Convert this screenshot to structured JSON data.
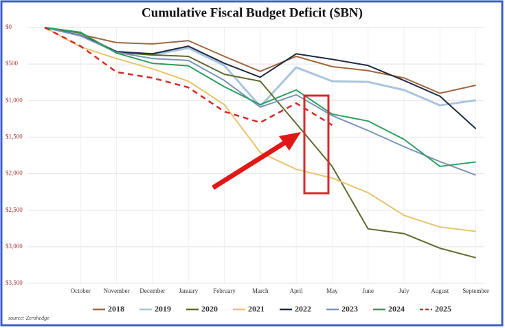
{
  "chart_data": {
    "type": "line",
    "title": "Cumulative Fiscal Budget Deficit ($BN)",
    "source": "source: Zerohedge",
    "categories": [
      null,
      "October",
      "November",
      "December",
      "January",
      "February",
      "March",
      "April",
      "May",
      "June",
      "July",
      "August",
      "September"
    ],
    "ylim": [
      3500,
      0
    ],
    "yticks": [
      {
        "value": 0,
        "label": "$0"
      },
      {
        "value": 500,
        "label": "$500"
      },
      {
        "value": 1000,
        "label": "$1,000"
      },
      {
        "value": 1500,
        "label": "$1,500"
      },
      {
        "value": 2000,
        "label": "$2,000"
      },
      {
        "value": 2500,
        "label": "$2,500"
      },
      {
        "value": 3000,
        "label": "$3,000"
      },
      {
        "value": 3500,
        "label": "$3,500"
      }
    ],
    "grid": true,
    "series": [
      {
        "name": "2018",
        "color": "#a0663c",
        "values": [
          0,
          95,
          207,
          225,
          180,
          395,
          600,
          395,
          535,
          590,
          690,
          900,
          790
        ]
      },
      {
        "name": "2019",
        "color": "#a9c4de",
        "values": [
          0,
          95,
          330,
          375,
          280,
          520,
          1080,
          545,
          735,
          745,
          855,
          1065,
          995
        ]
      },
      {
        "name": "2020",
        "color": "#5f6b2e",
        "values": [
          0,
          75,
          340,
          375,
          395,
          640,
          735,
          1315,
          1900,
          2755,
          2820,
          3020,
          3150
        ]
      },
      {
        "name": "2021",
        "color": "#e8c46a",
        "values": [
          0,
          265,
          425,
          565,
          735,
          1055,
          1710,
          1940,
          2060,
          2260,
          2570,
          2730,
          2790
        ]
      },
      {
        "name": "2022",
        "color": "#1f2a44",
        "values": [
          0,
          110,
          330,
          360,
          255,
          490,
          680,
          360,
          435,
          520,
          725,
          940,
          1385
        ]
      },
      {
        "name": "2023",
        "color": "#7b93b8",
        "values": [
          0,
          115,
          340,
          425,
          450,
          725,
          1090,
          920,
          1205,
          1410,
          1630,
          1835,
          2020
        ]
      },
      {
        "name": "2024",
        "color": "#2d9e5e",
        "values": [
          0,
          65,
          350,
          490,
          525,
          810,
          1055,
          855,
          1185,
          1280,
          1530,
          1900,
          1840
        ]
      },
      {
        "name": "2025",
        "color": "#d42a2a",
        "dashed": true,
        "values": [
          0,
          255,
          610,
          690,
          820,
          1150,
          1300,
          1035,
          1335,
          null,
          null,
          null,
          null
        ]
      }
    ]
  }
}
